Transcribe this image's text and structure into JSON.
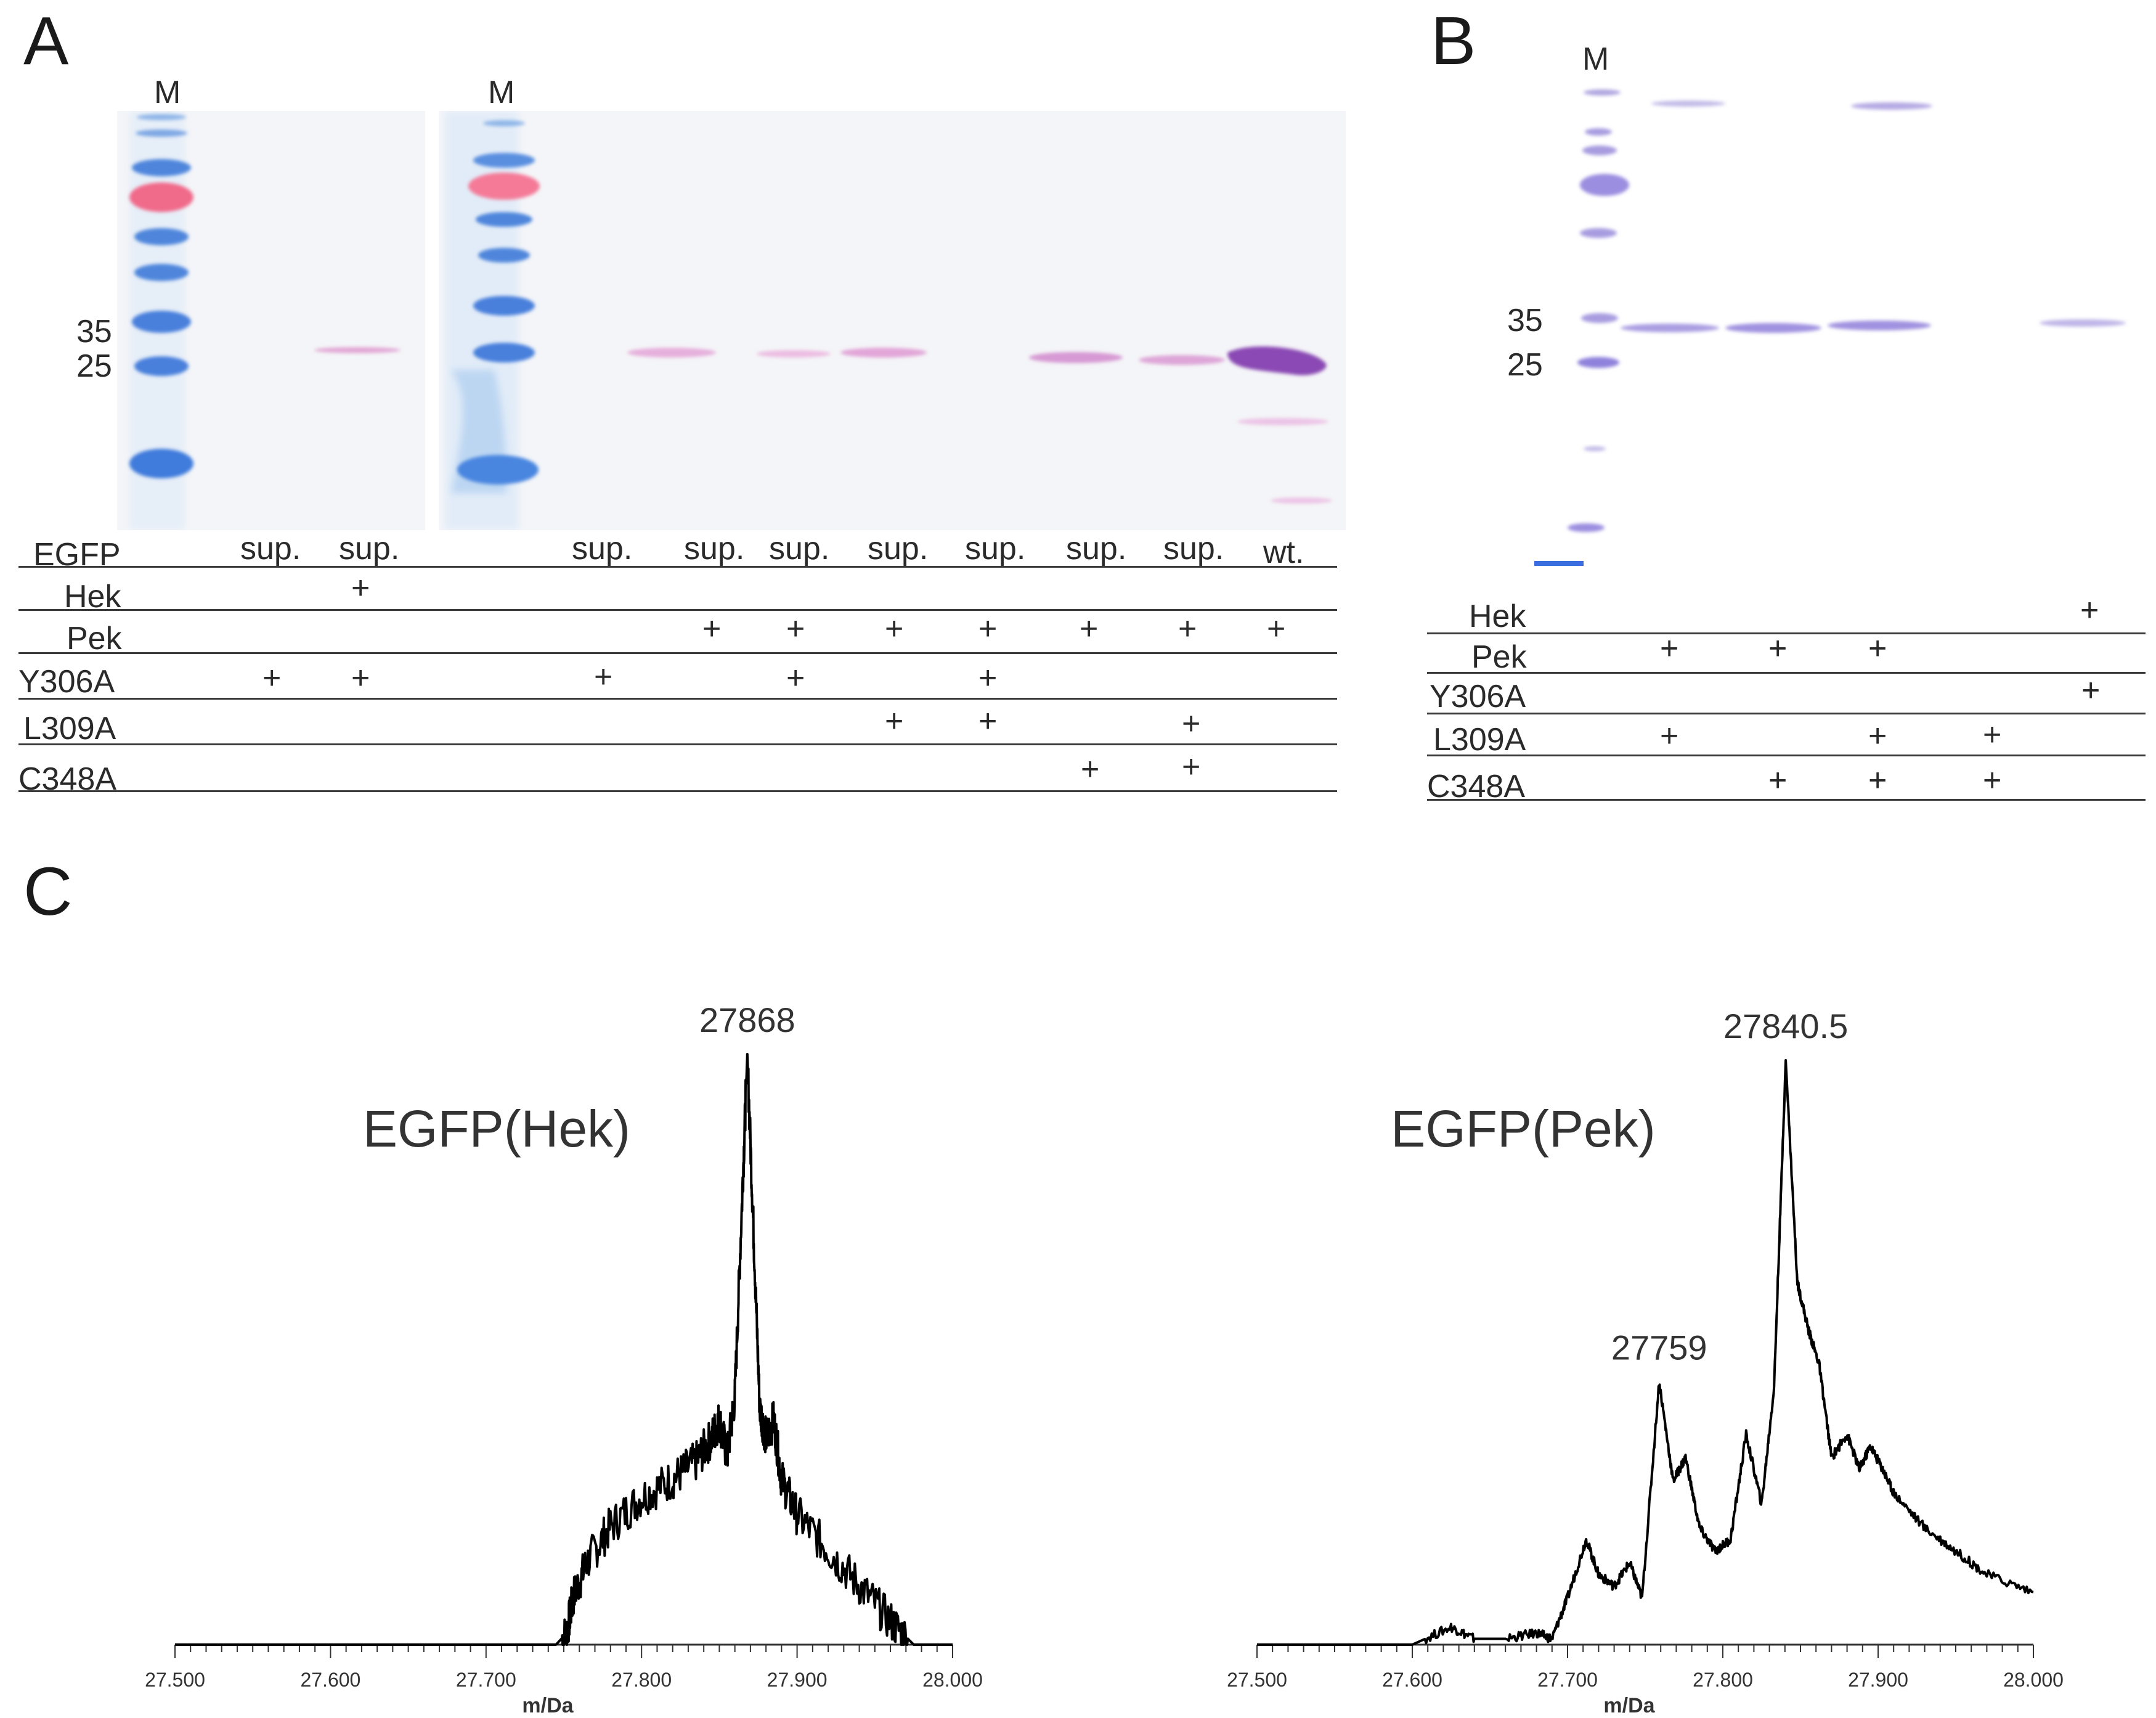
{
  "panels": {
    "a": {
      "letter": "A",
      "marker_label": "M",
      "mw_labels": [
        "35",
        "25"
      ],
      "table": {
        "rows": [
          {
            "label": "EGFP",
            "cells": [
              "sup.",
              "sup.",
              "sup.",
              "sup.",
              "sup.",
              "sup.",
              "sup.",
              "sup.",
              "sup.",
              "wt."
            ]
          },
          {
            "label": "Hek",
            "marks": [
              "+"
            ]
          },
          {
            "label": "Pek",
            "marks": [
              "+",
              "+",
              "+",
              "+",
              "+",
              "+",
              "+"
            ]
          },
          {
            "label": "Y306A",
            "marks": [
              "+",
              "+",
              "+",
              "+",
              "+"
            ]
          },
          {
            "label": "L309A",
            "marks": [
              "+",
              "+",
              "+"
            ]
          },
          {
            "label": "C348A",
            "marks": [
              "+",
              "+"
            ]
          }
        ]
      }
    },
    "b": {
      "letter": "B",
      "marker_label": "M",
      "mw_labels": [
        "35",
        "25"
      ],
      "table": {
        "rows": [
          {
            "label": "Hek",
            "marks": [
              "+"
            ]
          },
          {
            "label": "Pek",
            "marks": [
              "+",
              "+",
              "+"
            ]
          },
          {
            "label": "Y306A",
            "marks": [
              "+"
            ]
          },
          {
            "label": "L309A",
            "marks": [
              "+",
              "+",
              "+"
            ]
          },
          {
            "label": "C348A",
            "marks": [
              "+",
              "+",
              "+"
            ]
          }
        ]
      }
    },
    "c": {
      "letter": "C"
    }
  },
  "chart_data": [
    {
      "type": "line",
      "title": "EGFP(Hek)",
      "xlabel": "m/Da",
      "ylabel": "",
      "xlim": [
        27.5,
        28.0
      ],
      "xticks": [
        "27.500",
        "27.600",
        "27.700",
        "27.800",
        "27.900",
        "28.000"
      ],
      "ylim": [
        0,
        100
      ],
      "annotations": [
        {
          "label": "27868",
          "x": 27.868
        }
      ],
      "series": [
        {
          "name": "EGFP(Hek)",
          "x": [
            27.5,
            27.6,
            27.7,
            27.745,
            27.752,
            27.756,
            27.765,
            27.78,
            27.8,
            27.82,
            27.835,
            27.845,
            27.85,
            27.855,
            27.86,
            27.865,
            27.868,
            27.872,
            27.876,
            27.88,
            27.885,
            27.89,
            27.9,
            27.92,
            27.94,
            27.96,
            27.975,
            28.0
          ],
          "y": [
            0,
            0,
            0,
            0,
            2,
            8,
            14,
            20,
            25,
            28,
            31,
            35,
            38,
            32,
            42,
            78,
            100,
            70,
            40,
            35,
            38,
            28,
            22,
            16,
            10,
            4,
            0,
            0
          ]
        }
      ]
    },
    {
      "type": "line",
      "title": "EGFP(Pek)",
      "xlabel": "m/Da",
      "ylabel": "",
      "xlim": [
        27.5,
        28.0
      ],
      "xticks": [
        "27.500",
        "27.600",
        "27.700",
        "27.800",
        "27.900",
        "28.000"
      ],
      "ylim": [
        0,
        100
      ],
      "annotations": [
        {
          "label": "27840.5",
          "x": 27.8405
        },
        {
          "label": "27759",
          "x": 27.759
        }
      ],
      "series": [
        {
          "name": "EGFP(Pek)",
          "x": [
            27.5,
            27.6,
            27.625,
            27.64,
            27.66,
            27.68,
            27.69,
            27.7,
            27.712,
            27.72,
            27.73,
            27.74,
            27.748,
            27.759,
            27.768,
            27.776,
            27.785,
            27.795,
            27.805,
            27.815,
            27.825,
            27.833,
            27.8405,
            27.848,
            27.855,
            27.862,
            27.87,
            27.88,
            27.888,
            27.895,
            27.903,
            27.91,
            27.93,
            27.95,
            27.97,
            28.0
          ],
          "y": [
            0,
            0,
            3,
            1,
            1,
            2,
            1,
            8,
            18,
            12,
            10,
            14,
            8,
            45,
            28,
            32,
            20,
            16,
            18,
            36,
            24,
            44,
            100,
            62,
            54,
            48,
            32,
            36,
            30,
            34,
            30,
            26,
            20,
            16,
            12,
            9
          ]
        }
      ]
    }
  ]
}
